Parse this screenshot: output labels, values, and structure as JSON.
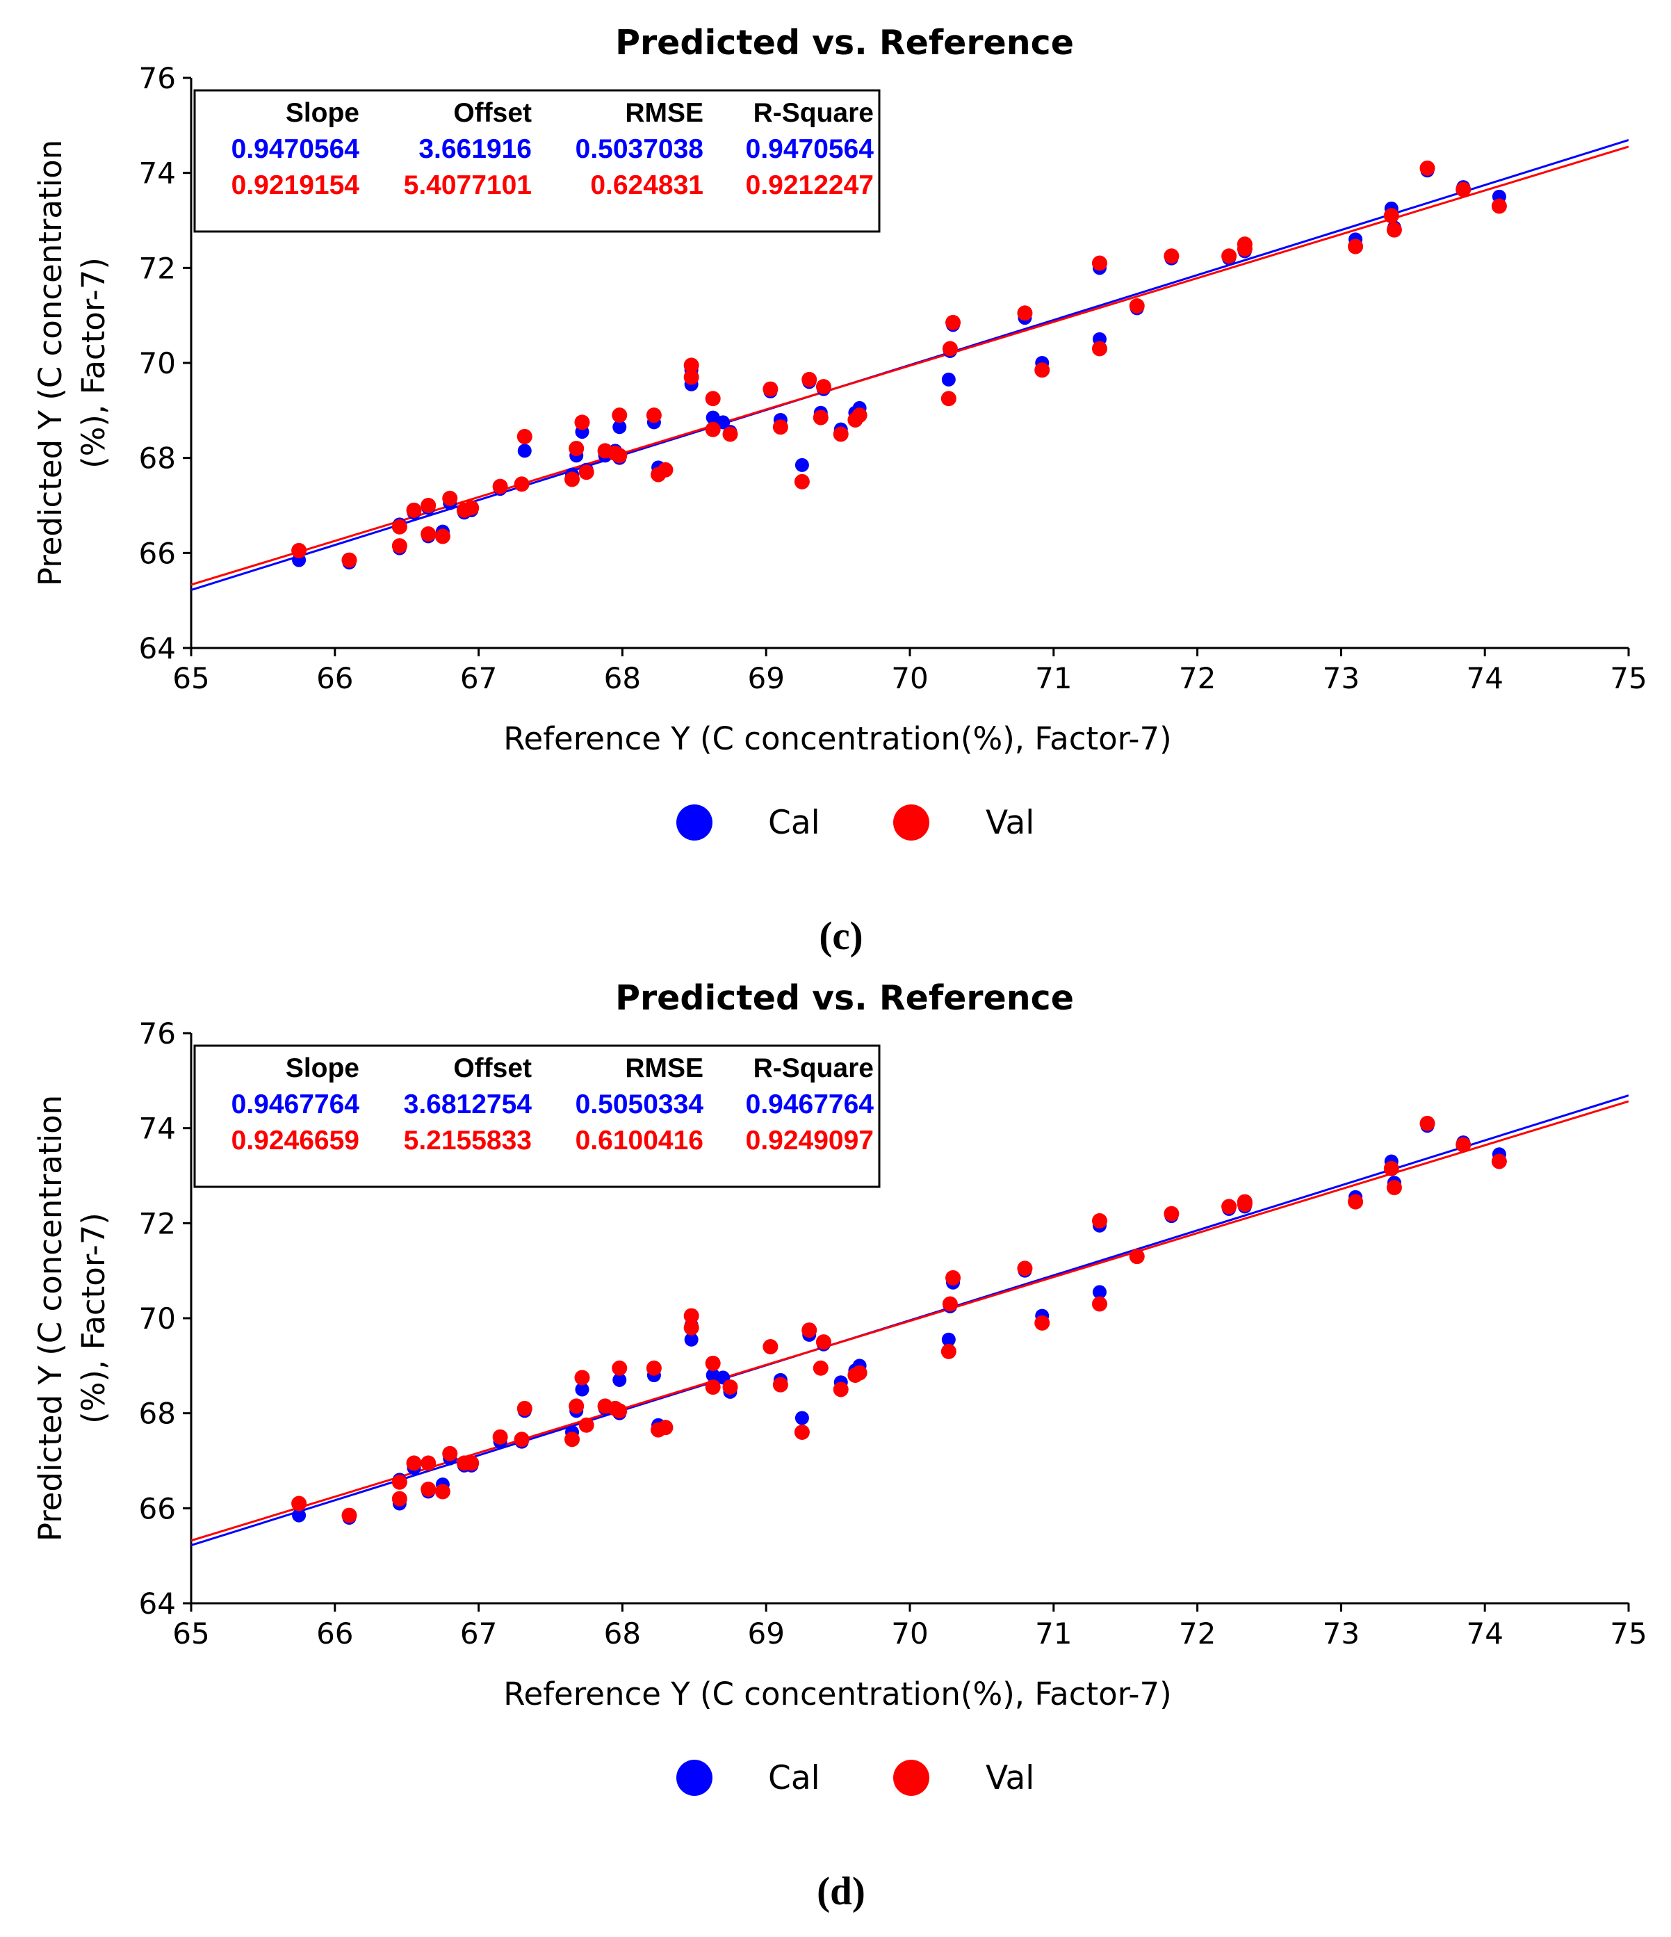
{
  "chart_data": [
    {
      "type": "scatter",
      "panel_label": "(c)",
      "title": "Predicted vs. Reference",
      "xlabel": "Reference Y (C concentration(%), Factor-7)",
      "ylabel_line1": "Predicted Y (C concentration",
      "ylabel_line2": "(%), Factor-7)",
      "xlim": [
        65,
        75
      ],
      "ylim": [
        64,
        76
      ],
      "xticks": [
        65,
        66,
        67,
        68,
        69,
        70,
        71,
        72,
        73,
        74,
        75
      ],
      "yticks": [
        64,
        66,
        68,
        70,
        72,
        74,
        76
      ],
      "grid": false,
      "legend_position": "bottom-center",
      "stats": {
        "headers": [
          "Slope",
          "Offset",
          "RMSE",
          "R-Square"
        ],
        "rows": [
          {
            "name": "Cal",
            "color": "#0000ff",
            "values": [
              "0.9470564",
              "3.661916",
              "0.5037038",
              "0.9470564"
            ]
          },
          {
            "name": "Val",
            "color": "#ff0000",
            "values": [
              "0.9219154",
              "5.4077101",
              "0.624831",
              "0.9212247"
            ]
          }
        ]
      },
      "fit_lines": [
        {
          "name": "Cal",
          "color": "#0000ff",
          "slope": 0.9470564,
          "offset": 3.661916
        },
        {
          "name": "Val",
          "color": "#ff0000",
          "slope": 0.9219154,
          "offset": 5.4077101
        }
      ],
      "series": [
        {
          "name": "Cal",
          "color": "#0000ff",
          "points": [
            [
              65.75,
              65.85
            ],
            [
              66.1,
              65.8
            ],
            [
              66.45,
              66.6
            ],
            [
              66.45,
              66.1
            ],
            [
              66.55,
              66.85
            ],
            [
              66.65,
              66.95
            ],
            [
              66.65,
              66.35
            ],
            [
              66.75,
              66.45
            ],
            [
              66.8,
              67.05
            ],
            [
              66.9,
              66.85
            ],
            [
              66.95,
              66.9
            ],
            [
              67.15,
              67.35
            ],
            [
              67.3,
              67.45
            ],
            [
              67.32,
              68.15
            ],
            [
              67.65,
              67.65
            ],
            [
              67.68,
              68.05
            ],
            [
              67.72,
              68.55
            ],
            [
              67.75,
              67.75
            ],
            [
              67.88,
              68.05
            ],
            [
              67.95,
              68.15
            ],
            [
              67.98,
              68.0
            ],
            [
              67.98,
              68.65
            ],
            [
              68.22,
              68.75
            ],
            [
              68.25,
              67.8
            ],
            [
              68.3,
              67.75
            ],
            [
              68.48,
              69.55
            ],
            [
              68.48,
              69.85
            ],
            [
              68.63,
              68.85
            ],
            [
              68.7,
              68.75
            ],
            [
              68.75,
              68.55
            ],
            [
              69.03,
              69.4
            ],
            [
              69.1,
              68.8
            ],
            [
              69.25,
              67.85
            ],
            [
              69.3,
              69.6
            ],
            [
              69.4,
              69.45
            ],
            [
              69.38,
              68.95
            ],
            [
              69.52,
              68.6
            ],
            [
              69.62,
              68.95
            ],
            [
              69.65,
              69.05
            ],
            [
              70.27,
              69.65
            ],
            [
              70.28,
              70.25
            ],
            [
              70.3,
              70.8
            ],
            [
              70.8,
              70.95
            ],
            [
              70.92,
              70.0
            ],
            [
              71.32,
              70.5
            ],
            [
              71.32,
              72.0
            ],
            [
              71.58,
              71.15
            ],
            [
              71.82,
              72.2
            ],
            [
              72.22,
              72.2
            ],
            [
              72.33,
              72.35
            ],
            [
              72.33,
              72.45
            ],
            [
              73.1,
              72.6
            ],
            [
              73.35,
              73.25
            ],
            [
              73.37,
              72.85
            ],
            [
              73.6,
              74.05
            ],
            [
              73.85,
              73.7
            ],
            [
              74.1,
              73.5
            ]
          ]
        },
        {
          "name": "Val",
          "color": "#ff0000",
          "points": [
            [
              65.75,
              66.05
            ],
            [
              66.1,
              65.85
            ],
            [
              66.45,
              66.55
            ],
            [
              66.45,
              66.15
            ],
            [
              66.55,
              66.9
            ],
            [
              66.65,
              67.0
            ],
            [
              66.65,
              66.4
            ],
            [
              66.75,
              66.35
            ],
            [
              66.8,
              67.15
            ],
            [
              66.9,
              66.9
            ],
            [
              66.95,
              66.95
            ],
            [
              67.15,
              67.4
            ],
            [
              67.3,
              67.45
            ],
            [
              67.32,
              68.45
            ],
            [
              67.65,
              67.55
            ],
            [
              67.68,
              68.2
            ],
            [
              67.72,
              68.75
            ],
            [
              67.75,
              67.7
            ],
            [
              67.88,
              68.15
            ],
            [
              67.95,
              68.1
            ],
            [
              67.98,
              68.05
            ],
            [
              67.98,
              68.9
            ],
            [
              68.22,
              68.9
            ],
            [
              68.25,
              67.65
            ],
            [
              68.3,
              67.75
            ],
            [
              68.48,
              69.7
            ],
            [
              68.48,
              69.95
            ],
            [
              68.63,
              69.25
            ],
            [
              68.63,
              68.6
            ],
            [
              68.75,
              68.5
            ],
            [
              69.03,
              69.45
            ],
            [
              69.1,
              68.65
            ],
            [
              69.25,
              67.5
            ],
            [
              69.3,
              69.65
            ],
            [
              69.4,
              69.5
            ],
            [
              69.38,
              68.85
            ],
            [
              69.52,
              68.5
            ],
            [
              69.62,
              68.8
            ],
            [
              69.65,
              68.9
            ],
            [
              70.27,
              69.25
            ],
            [
              70.28,
              70.3
            ],
            [
              70.3,
              70.85
            ],
            [
              70.8,
              71.05
            ],
            [
              70.92,
              69.85
            ],
            [
              71.32,
              70.3
            ],
            [
              71.32,
              72.1
            ],
            [
              71.58,
              71.2
            ],
            [
              71.82,
              72.25
            ],
            [
              72.22,
              72.25
            ],
            [
              72.33,
              72.4
            ],
            [
              72.33,
              72.5
            ],
            [
              73.1,
              72.45
            ],
            [
              73.35,
              73.1
            ],
            [
              73.37,
              72.8
            ],
            [
              73.6,
              74.1
            ],
            [
              73.85,
              73.65
            ],
            [
              74.1,
              73.3
            ]
          ]
        }
      ]
    },
    {
      "type": "scatter",
      "panel_label": "(d)",
      "title": "Predicted vs. Reference",
      "xlabel": "Reference Y (C concentration(%), Factor-7)",
      "ylabel_line1": "Predicted Y (C concentration",
      "ylabel_line2": "(%), Factor-7)",
      "xlim": [
        65,
        75
      ],
      "ylim": [
        64,
        76
      ],
      "xticks": [
        65,
        66,
        67,
        68,
        69,
        70,
        71,
        72,
        73,
        74,
        75
      ],
      "yticks": [
        64,
        66,
        68,
        70,
        72,
        74,
        76
      ],
      "grid": false,
      "legend_position": "bottom-center",
      "stats": {
        "headers": [
          "Slope",
          "Offset",
          "RMSE",
          "R-Square"
        ],
        "rows": [
          {
            "name": "Cal",
            "color": "#0000ff",
            "values": [
              "0.9467764",
              "3.6812754",
              "0.5050334",
              "0.9467764"
            ]
          },
          {
            "name": "Val",
            "color": "#ff0000",
            "values": [
              "0.9246659",
              "5.2155833",
              "0.6100416",
              "0.9249097"
            ]
          }
        ]
      },
      "fit_lines": [
        {
          "name": "Cal",
          "color": "#0000ff",
          "slope": 0.9467764,
          "offset": 3.6812754
        },
        {
          "name": "Val",
          "color": "#ff0000",
          "slope": 0.9246659,
          "offset": 5.2155833
        }
      ],
      "series": [
        {
          "name": "Cal",
          "color": "#0000ff",
          "points": [
            [
              65.75,
              65.85
            ],
            [
              66.1,
              65.8
            ],
            [
              66.45,
              66.6
            ],
            [
              66.45,
              66.1
            ],
            [
              66.55,
              66.85
            ],
            [
              66.65,
              66.95
            ],
            [
              66.65,
              66.35
            ],
            [
              66.75,
              66.5
            ],
            [
              66.8,
              67.05
            ],
            [
              66.9,
              66.9
            ],
            [
              66.95,
              66.9
            ],
            [
              67.15,
              67.4
            ],
            [
              67.3,
              67.4
            ],
            [
              67.32,
              68.05
            ],
            [
              67.65,
              67.6
            ],
            [
              67.68,
              68.05
            ],
            [
              67.72,
              68.5
            ],
            [
              67.75,
              67.75
            ],
            [
              67.88,
              68.1
            ],
            [
              67.95,
              68.1
            ],
            [
              67.98,
              68.0
            ],
            [
              67.98,
              68.7
            ],
            [
              68.22,
              68.8
            ],
            [
              68.25,
              67.75
            ],
            [
              68.3,
              67.7
            ],
            [
              68.48,
              69.55
            ],
            [
              68.48,
              69.85
            ],
            [
              68.63,
              68.8
            ],
            [
              68.7,
              68.75
            ],
            [
              68.75,
              68.45
            ],
            [
              69.03,
              69.4
            ],
            [
              69.1,
              68.7
            ],
            [
              69.25,
              67.9
            ],
            [
              69.3,
              69.65
            ],
            [
              69.4,
              69.45
            ],
            [
              69.38,
              68.95
            ],
            [
              69.52,
              68.65
            ],
            [
              69.62,
              68.9
            ],
            [
              69.65,
              69.0
            ],
            [
              70.27,
              69.55
            ],
            [
              70.28,
              70.25
            ],
            [
              70.3,
              70.75
            ],
            [
              70.8,
              71.0
            ],
            [
              70.92,
              70.05
            ],
            [
              71.32,
              70.55
            ],
            [
              71.32,
              71.95
            ],
            [
              71.58,
              71.3
            ],
            [
              71.82,
              72.15
            ],
            [
              72.22,
              72.3
            ],
            [
              72.33,
              72.35
            ],
            [
              72.33,
              72.4
            ],
            [
              73.1,
              72.55
            ],
            [
              73.35,
              73.3
            ],
            [
              73.37,
              72.85
            ],
            [
              73.6,
              74.05
            ],
            [
              73.85,
              73.7
            ],
            [
              74.1,
              73.45
            ]
          ]
        },
        {
          "name": "Val",
          "color": "#ff0000",
          "points": [
            [
              65.75,
              66.1
            ],
            [
              66.1,
              65.85
            ],
            [
              66.45,
              66.55
            ],
            [
              66.45,
              66.2
            ],
            [
              66.55,
              66.95
            ],
            [
              66.65,
              66.95
            ],
            [
              66.65,
              66.4
            ],
            [
              66.75,
              66.35
            ],
            [
              66.8,
              67.15
            ],
            [
              66.9,
              66.95
            ],
            [
              66.95,
              66.95
            ],
            [
              67.15,
              67.5
            ],
            [
              67.3,
              67.45
            ],
            [
              67.32,
              68.1
            ],
            [
              67.65,
              67.45
            ],
            [
              67.68,
              68.15
            ],
            [
              67.72,
              68.75
            ],
            [
              67.75,
              67.75
            ],
            [
              67.88,
              68.15
            ],
            [
              67.95,
              68.1
            ],
            [
              67.98,
              68.05
            ],
            [
              67.98,
              68.95
            ],
            [
              68.22,
              68.95
            ],
            [
              68.25,
              67.65
            ],
            [
              68.3,
              67.7
            ],
            [
              68.48,
              69.8
            ],
            [
              68.48,
              70.05
            ],
            [
              68.63,
              69.05
            ],
            [
              68.63,
              68.55
            ],
            [
              68.75,
              68.55
            ],
            [
              69.03,
              69.4
            ],
            [
              69.1,
              68.6
            ],
            [
              69.25,
              67.6
            ],
            [
              69.3,
              69.75
            ],
            [
              69.4,
              69.5
            ],
            [
              69.38,
              68.95
            ],
            [
              69.52,
              68.5
            ],
            [
              69.62,
              68.8
            ],
            [
              69.65,
              68.85
            ],
            [
              70.27,
              69.3
            ],
            [
              70.28,
              70.3
            ],
            [
              70.3,
              70.85
            ],
            [
              70.8,
              71.05
            ],
            [
              70.92,
              69.9
            ],
            [
              71.32,
              70.3
            ],
            [
              71.32,
              72.05
            ],
            [
              71.58,
              71.3
            ],
            [
              71.82,
              72.2
            ],
            [
              72.22,
              72.35
            ],
            [
              72.33,
              72.4
            ],
            [
              72.33,
              72.45
            ],
            [
              73.1,
              72.45
            ],
            [
              73.35,
              73.15
            ],
            [
              73.37,
              72.75
            ],
            [
              73.6,
              74.1
            ],
            [
              73.85,
              73.65
            ],
            [
              74.1,
              73.3
            ]
          ]
        }
      ]
    }
  ]
}
